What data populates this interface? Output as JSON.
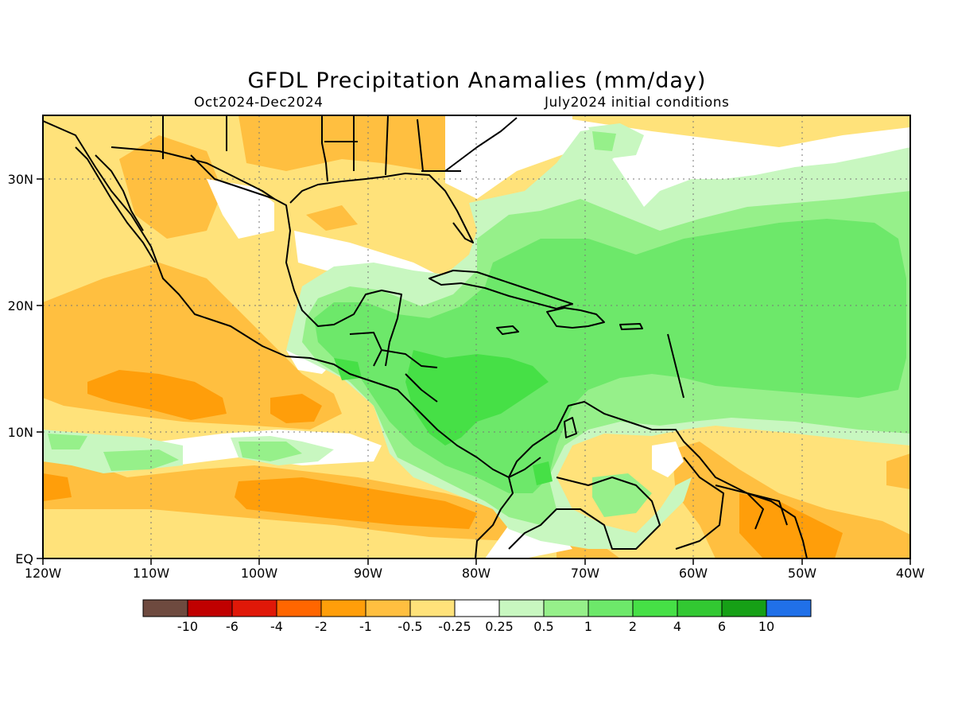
{
  "title": "GFDL Precipitation Anamalies (mm/day)",
  "period": "Oct2024-Dec2024",
  "init": "July2024 initial conditions",
  "x_ticks": [
    "120W",
    "110W",
    "100W",
    "90W",
    "80W",
    "70W",
    "60W",
    "50W",
    "40W"
  ],
  "y_ticks": [
    "EQ",
    "10N",
    "20N",
    "30N"
  ],
  "colorbar": {
    "colors": [
      "#6e4a3f",
      "#c00000",
      "#e01808",
      "#ff6600",
      "#ff9e0a",
      "#ffbf40",
      "#ffe27a",
      "#ffffff",
      "#c8f7c0",
      "#96f08a",
      "#6de86a",
      "#46e046",
      "#32c832",
      "#16a016",
      "#2070e8"
    ],
    "labels": [
      "-10",
      "-6",
      "-4",
      "-2",
      "-1",
      "-0.5",
      "-0.25",
      "0.25",
      "0.5",
      "1",
      "2",
      "4",
      "6",
      "10"
    ]
  }
}
